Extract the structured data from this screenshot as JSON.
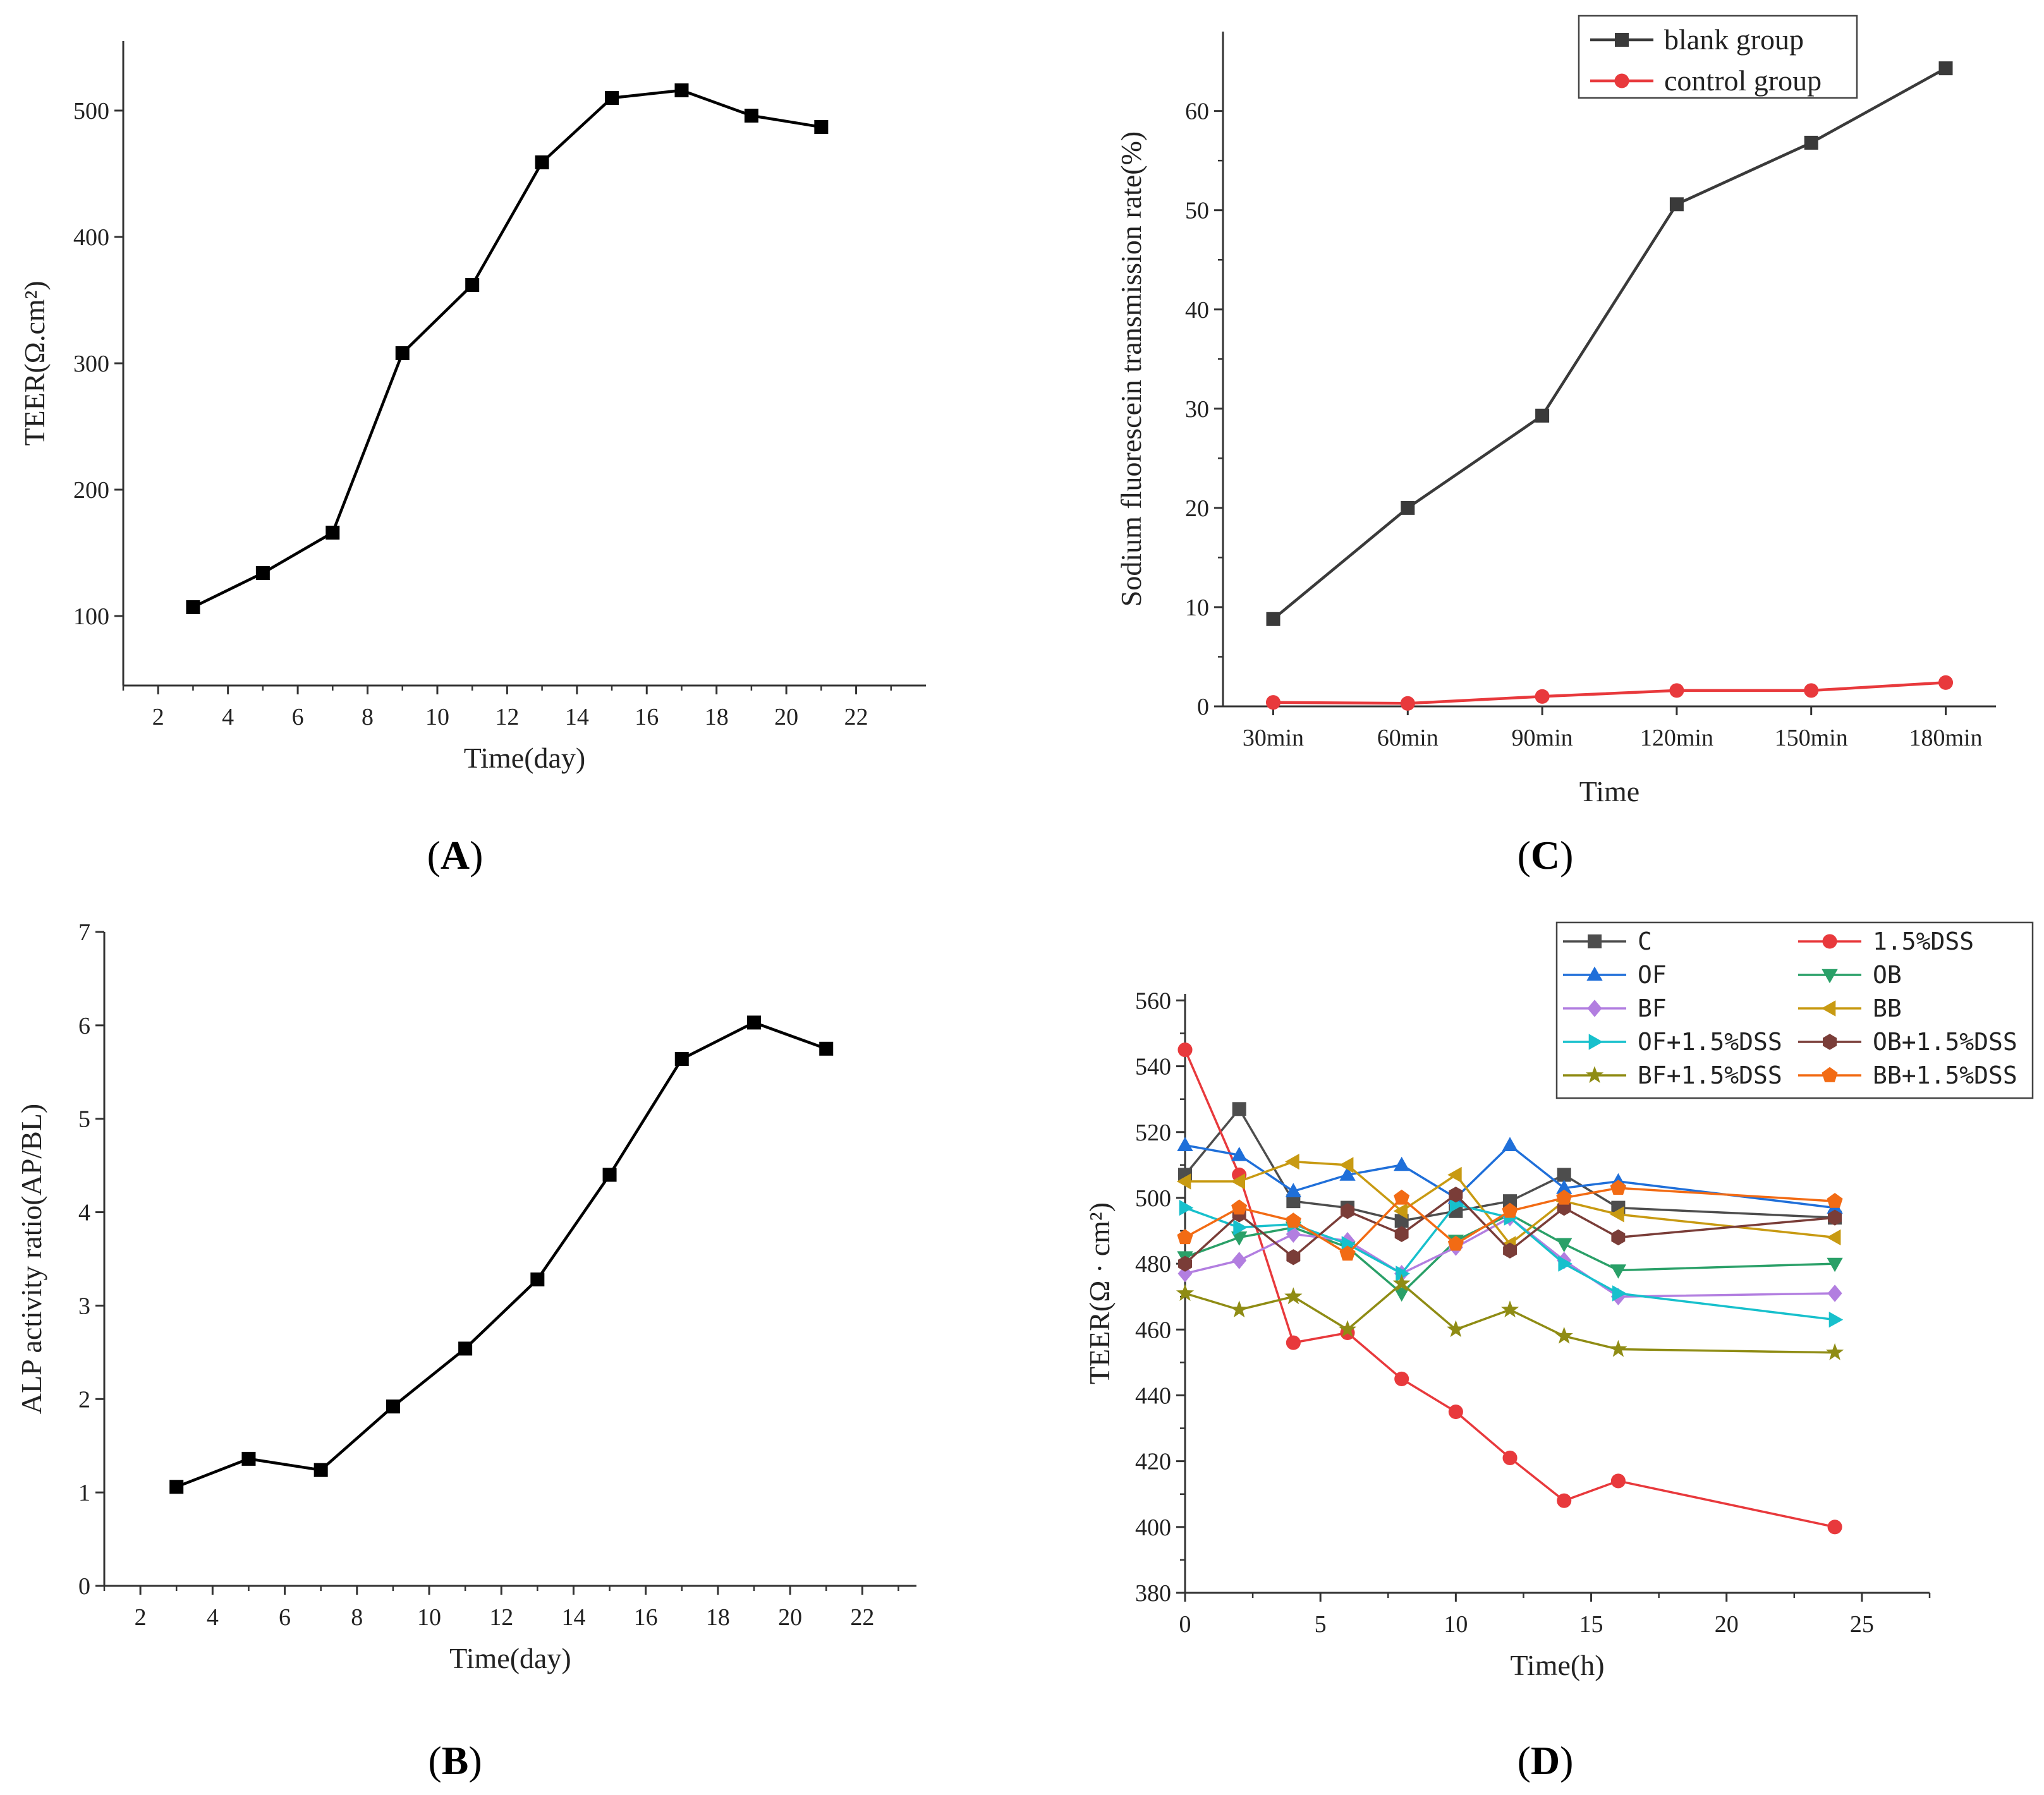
{
  "chart_data": [
    {
      "id": "A",
      "type": "line",
      "panel_label": "(A)",
      "panel_letter": "A",
      "title": "",
      "xlabel": "Time(day)",
      "ylabel": "TEER(Ω.cm²)",
      "xlim": [
        1,
        24
      ],
      "ylim": [
        45,
        555
      ],
      "xticks": [
        2,
        4,
        6,
        8,
        10,
        12,
        14,
        16,
        18,
        20,
        22
      ],
      "yticks": [
        100,
        200,
        300,
        400,
        500
      ],
      "grid": false,
      "series": [
        {
          "name": "TEER",
          "color": "#000000",
          "marker": "square",
          "x": [
            3,
            5,
            7,
            9,
            11,
            13,
            15,
            17,
            19,
            21
          ],
          "y": [
            107,
            134,
            166,
            308,
            362,
            459,
            510,
            516,
            496,
            487
          ]
        }
      ]
    },
    {
      "id": "B",
      "type": "line",
      "panel_label": "(B)",
      "panel_letter": "B",
      "title": "",
      "xlabel": "Time(day)",
      "ylabel": "ALP activity ratio(AP/BL)",
      "xlim": [
        1,
        23.5
      ],
      "ylim": [
        0,
        7
      ],
      "xticks": [
        2,
        4,
        6,
        8,
        10,
        12,
        14,
        16,
        18,
        20,
        22
      ],
      "yticks": [
        0,
        1,
        2,
        3,
        4,
        5,
        6,
        7
      ],
      "grid": false,
      "series": [
        {
          "name": "ALP",
          "color": "#000000",
          "marker": "square",
          "x": [
            3,
            5,
            7,
            9,
            11,
            13,
            15,
            17,
            19,
            21
          ],
          "y": [
            1.06,
            1.36,
            1.24,
            1.92,
            2.54,
            3.28,
            4.4,
            5.64,
            6.03,
            5.75
          ]
        }
      ]
    },
    {
      "id": "C",
      "type": "line",
      "panel_label": "(C)",
      "panel_letter": "C",
      "title": "",
      "xlabel": "Time",
      "ylabel": "Sodium fluorescein transmission rate(%)",
      "categories": [
        "30min",
        "60min",
        "90min",
        "120min",
        "150min",
        "180min"
      ],
      "ylim": [
        0,
        68
      ],
      "yticks": [
        0,
        10,
        20,
        30,
        40,
        50,
        60
      ],
      "grid": false,
      "legend": "top",
      "series": [
        {
          "name": "blank group",
          "color": "#3a3a3a",
          "marker": "square",
          "values": [
            8.8,
            20.0,
            29.3,
            50.6,
            56.8,
            64.3
          ]
        },
        {
          "name": "control group",
          "color": "#e8393c",
          "marker": "circle",
          "values": [
            0.4,
            0.3,
            1.0,
            1.6,
            1.6,
            2.4
          ]
        }
      ]
    },
    {
      "id": "D",
      "type": "line",
      "panel_label": "(D)",
      "panel_letter": "D",
      "title": "",
      "xlabel": "Time(h)",
      "ylabel": "TEER(Ω · cm²)",
      "xlim": [
        0,
        27.5
      ],
      "ylim": [
        380,
        562
      ],
      "xticks": [
        0,
        5,
        10,
        15,
        20,
        25
      ],
      "yticks": [
        380,
        400,
        420,
        440,
        460,
        480,
        500,
        520,
        540,
        560
      ],
      "x": [
        0,
        2,
        4,
        6,
        8,
        10,
        12,
        14,
        16,
        24
      ],
      "grid": false,
      "legend": "top-right",
      "series": [
        {
          "name": "C",
          "color": "#4d4d4d",
          "marker": "square",
          "values": [
            507,
            527,
            499,
            497,
            493,
            496,
            499,
            507,
            497,
            494
          ]
        },
        {
          "name": "1.5%DSS",
          "color": "#e8393c",
          "marker": "circle",
          "values": [
            545,
            507,
            456,
            459,
            445,
            435,
            421,
            408,
            414,
            400
          ]
        },
        {
          "name": "OF",
          "color": "#1f6fd9",
          "marker": "triangle-up",
          "values": [
            516,
            513,
            502,
            507,
            510,
            500,
            516,
            503,
            505,
            497
          ]
        },
        {
          "name": "OB",
          "color": "#2aa068",
          "marker": "triangle-down",
          "values": [
            482,
            488,
            491,
            485,
            471,
            487,
            495,
            486,
            478,
            480
          ]
        },
        {
          "name": "BF",
          "color": "#b27ee0",
          "marker": "diamond",
          "values": [
            477,
            481,
            489,
            487,
            477,
            485,
            494,
            481,
            470,
            471
          ]
        },
        {
          "name": "BB",
          "color": "#c89a12",
          "marker": "triangle-left",
          "values": [
            505,
            505,
            511,
            510,
            496,
            507,
            486,
            499,
            495,
            488
          ]
        },
        {
          "name": "OF+1.5%DSS",
          "color": "#17c0cc",
          "marker": "triangle-right",
          "values": [
            497,
            491,
            492,
            486,
            477,
            498,
            494,
            480,
            471,
            463
          ]
        },
        {
          "name": "OB+1.5%DSS",
          "color": "#7a3d38",
          "marker": "hexagon",
          "values": [
            480,
            495,
            482,
            496,
            489,
            501,
            484,
            497,
            488,
            494
          ]
        },
        {
          "name": "BF+1.5%DSS",
          "color": "#8f8c14",
          "marker": "star",
          "values": [
            471,
            466,
            470,
            460,
            474,
            460,
            466,
            458,
            454,
            453
          ]
        },
        {
          "name": "BB+1.5%DSS",
          "color": "#f26b14",
          "marker": "pentagon",
          "values": [
            488,
            497,
            493,
            483,
            500,
            486,
            496,
            500,
            503,
            499
          ]
        }
      ]
    }
  ]
}
